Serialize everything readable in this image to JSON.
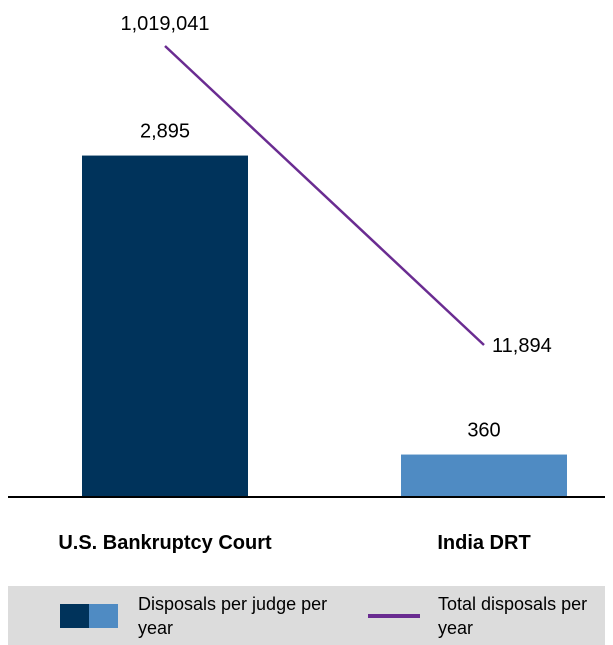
{
  "chart_data": {
    "type": "bar",
    "categories": [
      "U.S. Bankruptcy Court",
      "India DRT"
    ],
    "series": [
      {
        "name": "Disposals per judge per year",
        "chart_type": "bar",
        "values": [
          2895,
          360
        ],
        "value_labels": [
          "2,895",
          "360"
        ],
        "colors": [
          "#00335b",
          "#4f8bc3"
        ]
      },
      {
        "name": "Total disposals per year",
        "chart_type": "line",
        "values": [
          1019041,
          11894
        ],
        "value_labels": [
          "1,019,041",
          "11,894"
        ],
        "color": "#6a2c91"
      }
    ],
    "bar_ylim": [
      0,
      3400
    ],
    "line_range": {
      "top_value": 1019041,
      "bottom_value": 11894
    },
    "grid": false,
    "legend_position": "bottom",
    "colors": {
      "axis": "#000000",
      "legend_bg": "#dcdcdc"
    }
  },
  "legend": {
    "bars_label": "Disposals per judge per year",
    "line_label": "Total disposals per year"
  }
}
